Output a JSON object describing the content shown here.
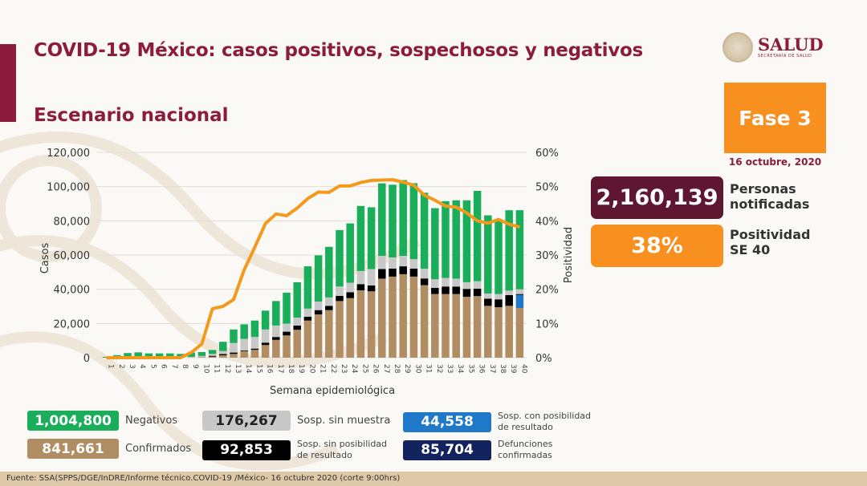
{
  "header": {
    "title": "COVID-19 México: casos positivos, sospechosos y negativos",
    "subtitle": "Escenario nacional"
  },
  "logo": {
    "name": "SALUD",
    "sub": "SECRETARÍA DE SALUD"
  },
  "phase": {
    "label": "Fase 3",
    "date": "16 octubre, 2020",
    "color": "#f7901e"
  },
  "kpis": [
    {
      "value": "2,160,139",
      "label1": "Personas",
      "label2": "notificadas",
      "color": "#5e1631"
    },
    {
      "value": "38%",
      "label1": "Positividad",
      "label2": "SE 40",
      "color": "#f7901e"
    }
  ],
  "legend": [
    {
      "value": "1,004,800",
      "label": "Negativos",
      "color": "#1aad5a",
      "text": "#fff"
    },
    {
      "value": "176,267",
      "label": "Sosp. sin muestra",
      "color": "#c8c8c8",
      "text": "#222"
    },
    {
      "value": "44,558",
      "label1": "Sosp. con posibilidad",
      "label2": "de resultado",
      "color": "#1f78c8",
      "text": "#fff"
    },
    {
      "value": "841,661",
      "label": "Confirmados",
      "color": "#b08d62",
      "text": "#fff"
    },
    {
      "value": "92,853",
      "label1": "Sosp. sin posibilidad",
      "label2": "de resultado",
      "color": "#000000",
      "text": "#fff"
    },
    {
      "value": "85,704",
      "label1": "Defunciones",
      "label2": "confirmadas",
      "color": "#13235e",
      "text": "#fff"
    }
  ],
  "footer": "Fuente: SSA(SPPS/DGE/InDRE/Informe técnico.COVID-19 /México- 16 octubre 2020 (corte 9:00hrs)",
  "chart_data": {
    "type": "bar",
    "stacked": true,
    "xlabel": "Semana epidemiológica",
    "ylabel": "Casos",
    "y2label": "Positividad",
    "ylim": [
      0,
      120000
    ],
    "yticks": [
      "0",
      "20,000",
      "40,000",
      "60,000",
      "80,000",
      "100,000",
      "120,000"
    ],
    "y2lim": [
      0,
      60
    ],
    "y2ticks": [
      "0%",
      "10%",
      "20%",
      "30%",
      "40%",
      "50%",
      "60%"
    ],
    "grid": true,
    "categories": [
      "1",
      "2",
      "3",
      "4",
      "5",
      "6",
      "7",
      "8",
      "9",
      "10",
      "11",
      "12",
      "13",
      "14",
      "15",
      "16",
      "17",
      "18",
      "19",
      "20",
      "21",
      "22",
      "23",
      "24",
      "25",
      "26",
      "27",
      "28",
      "29",
      "30",
      "31",
      "32",
      "33",
      "34",
      "35",
      "36",
      "37",
      "38",
      "39",
      "40"
    ],
    "series": [
      {
        "name": "Confirmados",
        "color": "#b08d62",
        "values": [
          0,
          0,
          0,
          0,
          0,
          0,
          0,
          0,
          100,
          200,
          600,
          1400,
          2200,
          3800,
          4600,
          7400,
          10400,
          13000,
          16300,
          21700,
          25300,
          27800,
          33100,
          34800,
          39400,
          38800,
          46200,
          47400,
          48800,
          47400,
          42400,
          37200,
          37200,
          37200,
          35600,
          36000,
          30300,
          29500,
          30300,
          29000
        ]
      },
      {
        "name": "Sosp. con posibilidad de resultado",
        "color": "#1f78c8",
        "values": [
          0,
          0,
          0,
          0,
          0,
          0,
          0,
          0,
          0,
          0,
          0,
          0,
          0,
          0,
          0,
          0,
          0,
          0,
          0,
          0,
          0,
          0,
          0,
          0,
          0,
          0,
          0,
          0,
          0,
          0,
          0,
          0,
          0,
          0,
          0,
          0,
          0,
          0,
          0,
          7700
        ]
      },
      {
        "name": "Sosp. sin posibilidad de resultado",
        "color": "#000000",
        "values": [
          0,
          0,
          0,
          0,
          0,
          0,
          0,
          0,
          0,
          100,
          500,
          700,
          800,
          400,
          700,
          1400,
          1700,
          2200,
          2500,
          2200,
          2500,
          2500,
          3000,
          3500,
          3600,
          3400,
          5600,
          4700,
          4600,
          4700,
          3900,
          3600,
          4400,
          4400,
          4600,
          4300,
          4200,
          4600,
          6300,
          500
        ]
      },
      {
        "name": "Sosp. sin muestra",
        "color": "#c8c8c8",
        "values": [
          0,
          200,
          300,
          300,
          300,
          300,
          300,
          300,
          400,
          700,
          1100,
          1800,
          5600,
          6800,
          6800,
          7700,
          6700,
          4700,
          4600,
          4800,
          5000,
          4900,
          5500,
          5500,
          7700,
          9600,
          7700,
          6500,
          6100,
          5500,
          5700,
          5000,
          5000,
          4600,
          3900,
          4400,
          3000,
          3100,
          2600,
          2800
        ]
      },
      {
        "name": "Negativos",
        "color": "#1aad5a",
        "values": [
          500,
          1300,
          2400,
          2800,
          2200,
          2200,
          2200,
          1900,
          2500,
          2300,
          2300,
          5400,
          7900,
          8500,
          9600,
          11000,
          14300,
          18100,
          20700,
          24700,
          27000,
          29600,
          33000,
          34700,
          38000,
          36100,
          42400,
          42500,
          44300,
          44400,
          44400,
          41600,
          44900,
          45800,
          47900,
          52800,
          45700,
          43600,
          47000,
          46200
        ]
      }
    ],
    "line": {
      "name": "Positividad",
      "color": "#f39a1c",
      "axis": "right",
      "values": [
        0,
        0,
        0,
        0,
        0,
        0,
        0,
        0,
        1.5,
        4,
        14.3,
        15,
        17,
        25.7,
        32.3,
        39.2,
        42,
        41.5,
        43.7,
        46.5,
        48.4,
        48.3,
        50.2,
        50.2,
        51.2,
        51.8,
        51.9,
        52,
        51.3,
        50.4,
        47.5,
        46,
        44.3,
        44,
        42.3,
        40,
        39.3,
        40.4,
        39,
        38.2
      ]
    }
  }
}
